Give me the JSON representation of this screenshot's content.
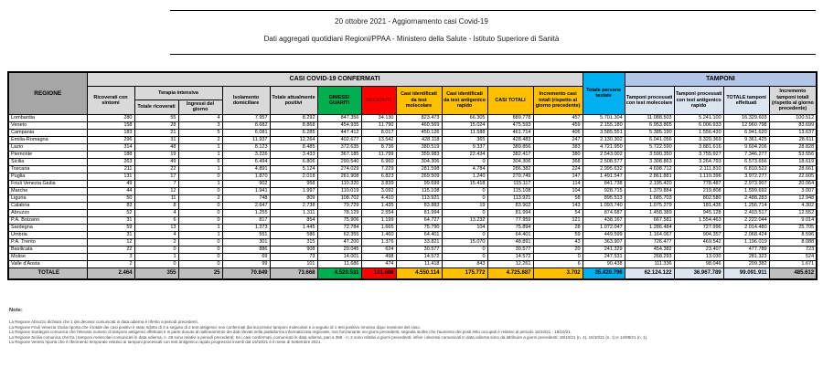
{
  "title": {
    "line1": "20 ottobre 2021 - Aggiornamento casi Covid-19",
    "line2": "Dati aggregati quotidiani Regioni/PPAA - Ministero della Salute - Istituto Superiore di Sanità"
  },
  "colors": {
    "green": "#00b050",
    "red": "#ff0000",
    "yellow": "#ffc000",
    "cyan": "#00b0f0",
    "periwinkle": "#b4c6e7",
    "light_periwinkle": "#dce6f1",
    "gray_header": "#d9d9d9",
    "dark_gray": "#a6a6a6",
    "totale_gray": "#bfbfbf"
  },
  "table": {
    "banner_casi": "CASI COVID-19 CONFERMATI",
    "banner_tamponi": "TAMPONI",
    "headers": {
      "regione": "REGIONE",
      "ricoverati": "Ricoverati con sintomi",
      "terapia_intensiva": "Terapia intensiva",
      "ti_totale": "Totale ricoverati",
      "ti_ingressi": "Ingressi del giorno",
      "isolamento": "Isolamento domiciliare",
      "attualmente_positivi": "Totale attualmente positivi",
      "dimessi": "DIMESSI GUARITI",
      "deceduti": "DECEDUTI",
      "casi_molecolare": "Casi identificati da test molecolare",
      "casi_antigenico": "Casi identificati da test antigenico rapido",
      "casi_totali": "CASI TOTALI",
      "incremento_casi": "Incremento casi totali (rispetto al giorno precedente)",
      "persone_testate": "Totale persone testate",
      "tamponi_molecolare": "Tamponi processati con test molecolare",
      "tamponi_antigenico": "Tamponi processati con test antigenico rapido",
      "totale_tamponi": "TOTALE tamponi effettuati",
      "incremento_tamponi": "Incremento tamponi totali (rispetto al giorno precedente)"
    },
    "rows": [
      {
        "regione": "Lombardia",
        "values": [
          "280",
          "55",
          "4",
          "7.957",
          "8.292",
          "847.356",
          "34.130",
          "823.473",
          "66.305",
          "889.778",
          "457",
          "5.701.304",
          "11.088.503",
          "5.241.100",
          "16.329.603",
          "100.512"
        ]
      },
      {
        "regione": "Veneto",
        "values": [
          "158",
          "28",
          "3",
          "8.682",
          "8.868",
          "454.935",
          "11.790",
          "460.569",
          "15.024",
          "475.593",
          "459",
          "2.155.180",
          "6.953.865",
          "6.006.933",
          "12.960.798",
          "83.699"
        ]
      },
      {
        "regione": "Campania",
        "values": [
          "183",
          "21",
          "5",
          "6.081",
          "6.285",
          "447.412",
          "8.017",
          "450.126",
          "11.588",
          "461.714",
          "406",
          "3.585.551",
          "5.385.190",
          "1.556.430",
          "6.941.620",
          "13.637"
        ]
      },
      {
        "regione": "Emilia-Romagna",
        "values": [
          "296",
          "31",
          "2",
          "11.937",
          "12.264",
          "402.677",
          "13.542",
          "428.118",
          "365",
          "428.483",
          "247",
          "2.130.302",
          "6.041.056",
          "3.320.369",
          "9.361.425",
          "28.611"
        ]
      },
      {
        "regione": "Lazio",
        "values": [
          "314",
          "48",
          "1",
          "8.123",
          "8.485",
          "372.635",
          "8.736",
          "380.519",
          "9.337",
          "389.856",
          "383",
          "4.721.950",
          "5.722.590",
          "3.881.616",
          "9.604.206",
          "28.828"
        ]
      },
      {
        "regione": "Piemonte",
        "values": [
          "188",
          "19",
          "1",
          "3.226",
          "3.433",
          "367.185",
          "11.799",
          "359.983",
          "22.434",
          "382.417",
          "380",
          "2.543.002",
          "3.590.350",
          "3.755.927",
          "7.346.277",
          "53.556"
        ]
      },
      {
        "regione": "Sicilia",
        "values": [
          "263",
          "49",
          "6",
          "6.494",
          "6.806",
          "290.540",
          "6.960",
          "304.306",
          "0",
          "304.306",
          "368",
          "2.508.577",
          "3.308.863",
          "3.264.793",
          "6.573.656",
          "18.619"
        ]
      },
      {
        "regione": "Toscana",
        "values": [
          "211",
          "22",
          "1",
          "4.891",
          "5.124",
          "274.029",
          "7.229",
          "281.598",
          "4.784",
          "286.382",
          "224",
          "2.995.632",
          "4.698.712",
          "2.111.810",
          "6.810.522",
          "28.661"
        ]
      },
      {
        "regione": "Puglia",
        "values": [
          "131",
          "17",
          "0",
          "1.870",
          "2.018",
          "261.908",
          "6.823",
          "269.509",
          "1.240",
          "270.749",
          "147",
          "1.491.547",
          "2.861.881",
          "1.110.396",
          "3.972.277",
          "22.605"
        ]
      },
      {
        "regione": "Friuli Venezia Giulia",
        "values": [
          "49",
          "7",
          "1",
          "902",
          "958",
          "110.320",
          "3.839",
          "99.699",
          "15.418",
          "115.117",
          "114",
          "841.738",
          "2.195.420",
          "778.487",
          "2.973.907",
          "20.064"
        ]
      },
      {
        "regione": "Marche",
        "values": [
          "44",
          "12",
          "0",
          "1.941",
          "1.997",
          "110.019",
          "3.092",
          "115.108",
          "0",
          "115.108",
          "104",
          "928.715",
          "1.379.884",
          "219.808",
          "1.599.692",
          "3.007"
        ]
      },
      {
        "regione": "Liguria",
        "values": [
          "50",
          "11",
          "2",
          "748",
          "809",
          "108.702",
          "4.410",
          "113.921",
          "0",
          "113.921",
          "58",
          "895.513",
          "1.685.703",
          "802.580",
          "2.488.283",
          "12.948"
        ]
      },
      {
        "regione": "Calabria",
        "values": [
          "83",
          "8",
          "0",
          "2.647",
          "2.738",
          "79.729",
          "1.435",
          "83.883",
          "19",
          "83.902",
          "143",
          "1.093.740",
          "1.075.279",
          "181.435",
          "1.256.714",
          "4.302"
        ]
      },
      {
        "regione": "Abruzzo",
        "values": [
          "52",
          "4",
          "0",
          "1.255",
          "1.311",
          "78.129",
          "2.554",
          "81.994",
          "0",
          "81.994",
          "54",
          "874.687",
          "1.458.389",
          "945.128",
          "2.403.517",
          "12.552"
        ]
      },
      {
        "regione": "P.A. Bolzano",
        "values": [
          "31",
          "6",
          "0",
          "817",
          "854",
          "75.906",
          "1.199",
          "64.727",
          "13.232",
          "77.959",
          "121",
          "438.167",
          "667.581",
          "1.554.463",
          "2.222.044",
          "9.014"
        ]
      },
      {
        "regione": "Sardegna",
        "values": [
          "59",
          "13",
          "1",
          "1.373",
          "1.445",
          "72.784",
          "1.665",
          "75.790",
          "104",
          "75.894",
          "28",
          "1.072.047",
          "1.286.484",
          "727.996",
          "2.014.480",
          "25.705"
        ]
      },
      {
        "regione": "Umbria",
        "values": [
          "31",
          "4",
          "1",
          "551",
          "586",
          "62.355",
          "1.460",
          "64.401",
          "0",
          "64.401",
          "59",
          "449.599",
          "1.164.067",
          "904.357",
          "2.068.424",
          "8.596"
        ]
      },
      {
        "regione": "P.A. Trento",
        "values": [
          "12",
          "2",
          "0",
          "301",
          "315",
          "47.200",
          "1.376",
          "33.821",
          "15.070",
          "48.891",
          "43",
          "363.907",
          "726.477",
          "469.542",
          "1.196.019",
          "8.088"
        ]
      },
      {
        "regione": "Basilicata",
        "values": [
          "22",
          "0",
          "0",
          "886",
          "908",
          "29.045",
          "624",
          "30.577",
          "0",
          "30.577",
          "20",
          "241.329",
          "454.382",
          "23.407",
          "477.789",
          "723"
        ]
      },
      {
        "regione": "Molise",
        "values": [
          "3",
          "1",
          "0",
          "69",
          "73",
          "14.001",
          "498",
          "14.572",
          "0",
          "14.572",
          "0",
          "247.531",
          "268.293",
          "13.030",
          "281.323",
          "524"
        ]
      },
      {
        "regione": "Valle d'Aosta",
        "values": [
          "2",
          "0",
          "0",
          "99",
          "101",
          "11.686",
          "474",
          "11.418",
          "843",
          "12.261",
          "6",
          "90.438",
          "111.336",
          "98.046",
          "209.382",
          "1.671"
        ]
      }
    ],
    "totale": {
      "regione": "TOTALE",
      "values": [
        "2.464",
        "355",
        "25",
        "70.849",
        "73.668",
        "4.520.531",
        "131.688",
        "4.550.114",
        "175.772",
        "4.725.887",
        "3.702",
        "35.420.796",
        "62.124.122",
        "36.967.789",
        "99.091.911",
        "485.612"
      ]
    }
  },
  "notes": {
    "label": "Note:",
    "items": [
      "La Regione Abruzzo dichiara che 1 dei decessi comunicati in data odierna è riferito a periodi precedenti.",
      "La Regione Friuli Venezia Giulia riporta che il totale dei casi positivi è stato ridotto di 3 a seguito di 2 test antigenici non confermati dai successivi tamponi molecolari e a seguito di 1 test positivo rimosso dopo revisione del caso.",
      "La Regione Sardegna comunica che l'elevato numero di tamponi antigenici effettuati è in parte dovuto al riallineamento dei dati rilevati nella piattaforma informatizzata regionale, non funzionante nei giorni precedenti, segnala inoltre che l'aumento dei posti letto occupati è relativo al periodo 16/10/21 - 19/10/21.",
      "La Regione Sicilia comunica che tra i tamponi molecolari comunicati in data odierna, n. 28 sono relativi a periodi precedenti; tra i casi confermati, comunicati in data odierna, pari a 368 - n. 2 sono relativi a giorni precedenti; infine i decessi comunicati in data odierna sono da attribuire a giorni precedenti: 19/10/21 (n. 4), 16/10/21 (n. 1) e 14/08/21 (n. 1).",
      "La Regione Veneto riporta che il riferimento temporale relativo ai tamponi processati con test antigenico rapido progressivi inseriti dal 19/10/21 è il mese di Settembre 2021."
    ]
  }
}
